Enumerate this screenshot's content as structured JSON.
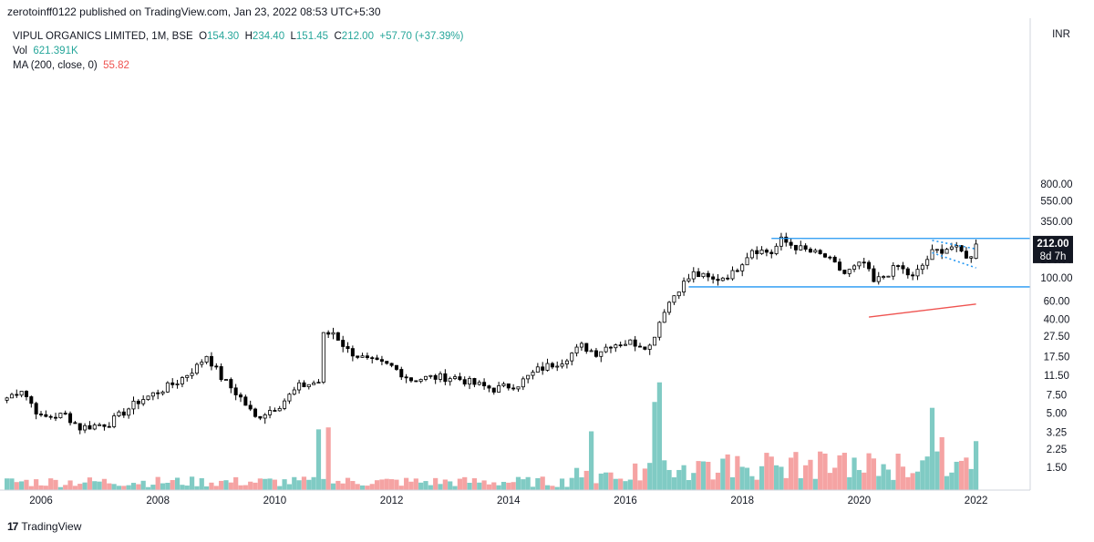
{
  "header": {
    "publisher_line": "zerotoinff0122 published on TradingView.com, Jan 23, 2022 08:53 UTC+5:30"
  },
  "legend": {
    "symbol": "VIPUL ORGANICS LIMITED, 1M, BSE",
    "o_label": "O",
    "o_value": "154.30",
    "h_label": "H",
    "h_value": "234.40",
    "l_label": "L",
    "l_value": "151.45",
    "c_label": "C",
    "c_value": "212.00",
    "change": "+57.70 (+37.39%)",
    "vol_label": "Vol",
    "vol_value": "621.391K",
    "ma_label": "MA (200, close, 0)",
    "ma_value": "55.82"
  },
  "footer": {
    "brand": "TradingView",
    "logo": "17"
  },
  "colors": {
    "up": "#26a69a",
    "down": "#ef5350",
    "vol_up": "#80cbc4",
    "vol_down": "#f5a3a3",
    "trendline": "#2196f3",
    "ma": "#ef5350",
    "candle": "#000000"
  },
  "chart_data": {
    "type": "candlestick",
    "timeframe": "1M",
    "currency": "INR",
    "log_scale": true,
    "y_ticks": [
      "800.00",
      "550.00",
      "350.00",
      "220.00",
      "150.00",
      "100.00",
      "60.00",
      "40.00",
      "27.50",
      "17.50",
      "11.50",
      "7.50",
      "5.00",
      "3.25",
      "2.25",
      "1.50"
    ],
    "x_ticks": [
      "2006",
      "2008",
      "2010",
      "2012",
      "2014",
      "2016",
      "2018",
      "2020",
      "2022"
    ],
    "current_price": {
      "label": "212.00",
      "countdown": "8d 7h"
    },
    "axis_unit": "INR",
    "ma_200": {
      "start": [
        "2020-03",
        42
      ],
      "end": [
        "2022-01",
        56
      ]
    },
    "horizontal_lines": [
      {
        "price": 240,
        "from": "2018-07",
        "to": "2022-12"
      },
      {
        "price": 82,
        "from": "2017-02",
        "to": "2022-12"
      }
    ],
    "channel_lines": [
      {
        "from": [
          "2021-04",
          230
        ],
        "to": [
          "2022-01",
          190
        ]
      },
      {
        "from": [
          "2021-04",
          175
        ],
        "to": [
          "2022-01",
          125
        ]
      }
    ],
    "anchors": [
      [
        "2005-06",
        7
      ],
      [
        "2005-09",
        8.5
      ],
      [
        "2006-01",
        4.5
      ],
      [
        "2006-06",
        4.8
      ],
      [
        "2006-09",
        3.6
      ],
      [
        "2007-03",
        4.0
      ],
      [
        "2007-09",
        6.5
      ],
      [
        "2008-01",
        8
      ],
      [
        "2008-05",
        10
      ],
      [
        "2008-09",
        14
      ],
      [
        "2008-11",
        18
      ],
      [
        "2009-02",
        11
      ],
      [
        "2009-06",
        7
      ],
      [
        "2009-09",
        4.5
      ],
      [
        "2010-02",
        6
      ],
      [
        "2010-06",
        9
      ],
      [
        "2010-10",
        10
      ],
      [
        "2010-11",
        28
      ],
      [
        "2011-01",
        30
      ],
      [
        "2011-04",
        20
      ],
      [
        "2011-08",
        16
      ],
      [
        "2012-01",
        14
      ],
      [
        "2012-05",
        10.5
      ],
      [
        "2012-09",
        11
      ],
      [
        "2013-02",
        11
      ],
      [
        "2013-06",
        9.5
      ],
      [
        "2013-10",
        8.5
      ],
      [
        "2014-03",
        9.5
      ],
      [
        "2014-07",
        13
      ],
      [
        "2014-12",
        16
      ],
      [
        "2015-04",
        22
      ],
      [
        "2015-07",
        19
      ],
      [
        "2015-10",
        23
      ],
      [
        "2016-02",
        24
      ],
      [
        "2016-06",
        22
      ],
      [
        "2016-09",
        50
      ],
      [
        "2016-12",
        80
      ],
      [
        "2017-03",
        110
      ],
      [
        "2017-07",
        95
      ],
      [
        "2017-11",
        110
      ],
      [
        "2018-03",
        190
      ],
      [
        "2018-07",
        175
      ],
      [
        "2018-09",
        230
      ],
      [
        "2019-01",
        190
      ],
      [
        "2019-06",
        160
      ],
      [
        "2019-10",
        110
      ],
      [
        "2020-02",
        140
      ],
      [
        "2020-04",
        90
      ],
      [
        "2020-09",
        130
      ],
      [
        "2020-12",
        100
      ],
      [
        "2021-04",
        175
      ],
      [
        "2021-08",
        200
      ],
      [
        "2021-12",
        155
      ],
      [
        "2022-01",
        212
      ]
    ],
    "volume_spikes": [
      [
        "2010-10",
        3.1
      ],
      [
        "2010-12",
        3.2
      ],
      [
        "2015-06",
        3.0
      ],
      [
        "2016-08",
        5.5
      ],
      [
        "2016-07",
        4.5
      ],
      [
        "2021-04",
        4.2
      ],
      [
        "2021-06",
        2.7
      ],
      [
        "2022-01",
        2.5
      ]
    ]
  }
}
